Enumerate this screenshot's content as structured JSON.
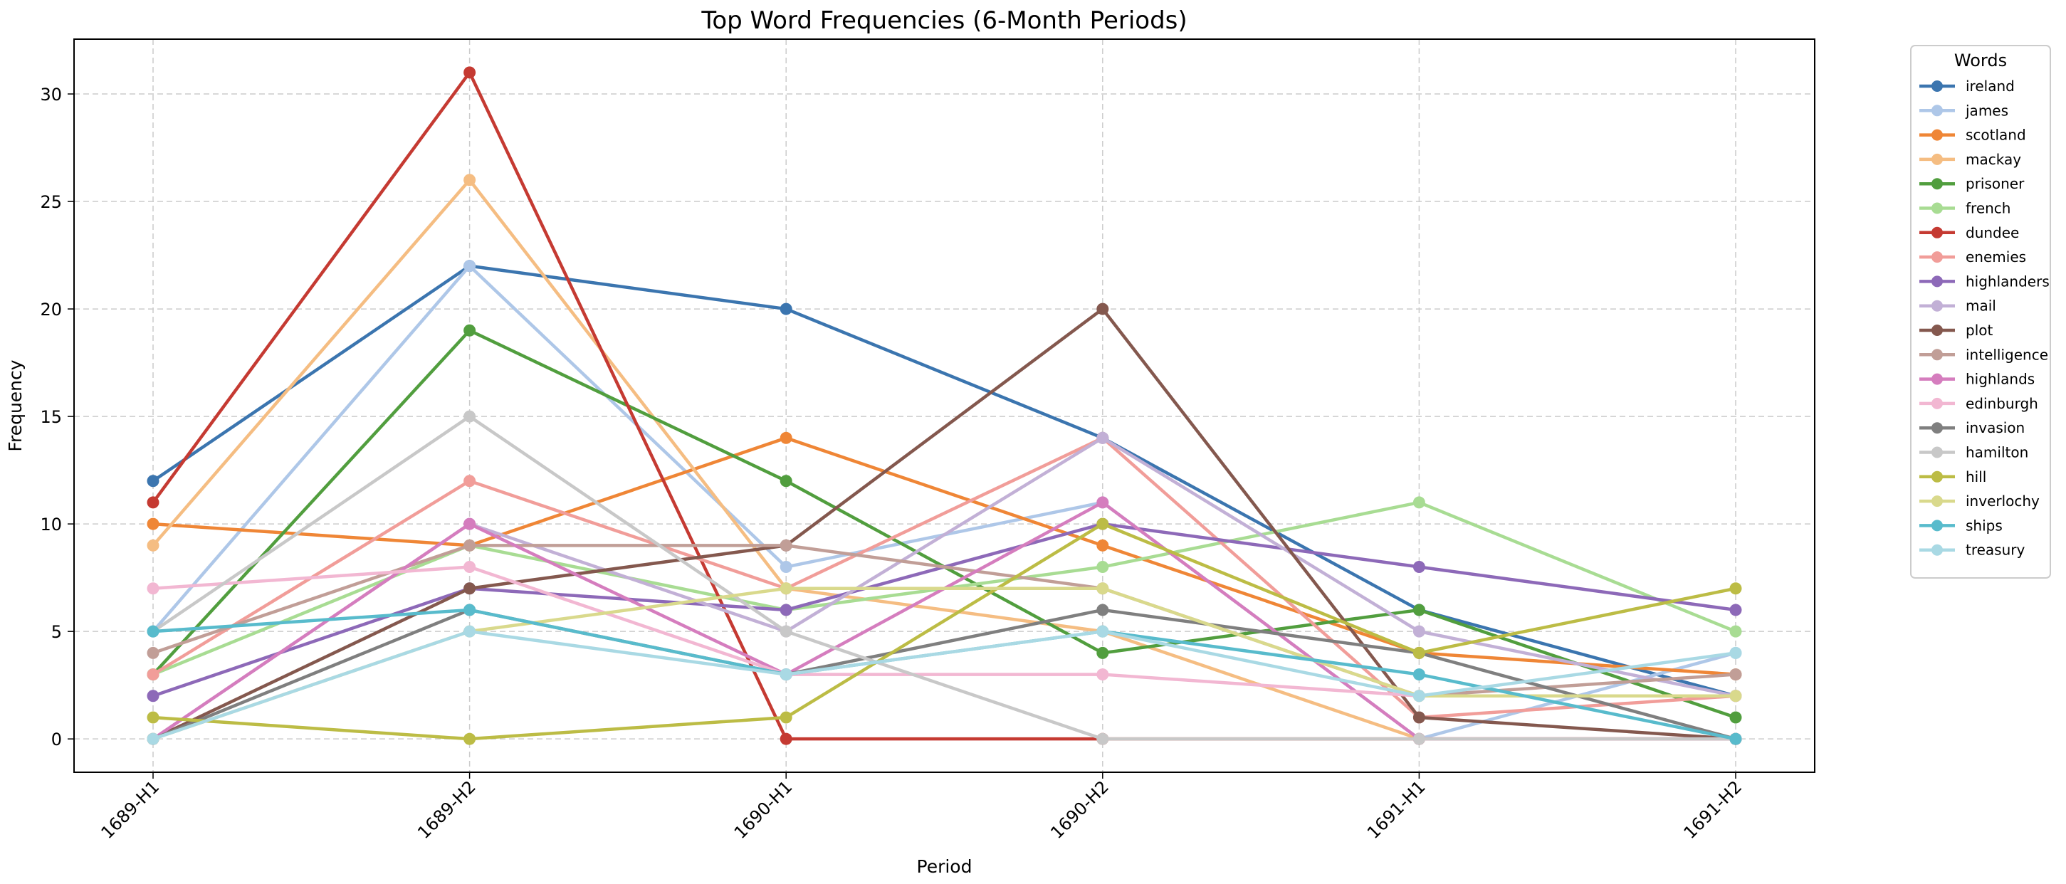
{
  "chart_data": {
    "type": "line",
    "title": "Top Word Frequencies (6-Month Periods)",
    "xlabel": "Period",
    "ylabel": "Frequency",
    "categories": [
      "1689-H1",
      "1689-H2",
      "1690-H1",
      "1690-H2",
      "1691-H1",
      "1691-H2"
    ],
    "ylim": [
      -1.55,
      32.55
    ],
    "yticks": [
      0,
      5,
      10,
      15,
      20,
      25,
      30
    ],
    "grid": true,
    "legend": {
      "title": "Words",
      "placement": "outside-right"
    },
    "series": [
      {
        "name": "ireland",
        "color": "#3b75af",
        "values": [
          12,
          22,
          20,
          14,
          6,
          2
        ]
      },
      {
        "name": "james",
        "color": "#aec7e8",
        "values": [
          5,
          22,
          8,
          11,
          0,
          4
        ]
      },
      {
        "name": "scotland",
        "color": "#ef8636",
        "values": [
          10,
          9,
          14,
          9,
          4,
          3
        ]
      },
      {
        "name": "mackay",
        "color": "#f5bd82",
        "values": [
          9,
          26,
          7,
          5,
          0,
          0
        ]
      },
      {
        "name": "prisoner",
        "color": "#519e3e",
        "values": [
          3,
          19,
          12,
          4,
          6,
          1
        ]
      },
      {
        "name": "french",
        "color": "#a8dc93",
        "values": [
          3,
          9,
          6,
          8,
          11,
          5
        ]
      },
      {
        "name": "dundee",
        "color": "#c53a32",
        "values": [
          11,
          31,
          0,
          0,
          0,
          0
        ]
      },
      {
        "name": "enemies",
        "color": "#f19d99",
        "values": [
          3,
          12,
          7,
          14,
          1,
          2
        ]
      },
      {
        "name": "highlanders",
        "color": "#8d69b8",
        "values": [
          2,
          7,
          6,
          10,
          8,
          6
        ]
      },
      {
        "name": "mail",
        "color": "#c2b0d6",
        "values": [
          0,
          10,
          5,
          14,
          5,
          2
        ]
      },
      {
        "name": "plot",
        "color": "#84584e",
        "values": [
          0,
          7,
          9,
          20,
          1,
          0
        ]
      },
      {
        "name": "intelligence",
        "color": "#c19e97",
        "values": [
          4,
          9,
          9,
          7,
          2,
          3
        ]
      },
      {
        "name": "highlands",
        "color": "#d57dbe",
        "values": [
          0,
          10,
          3,
          11,
          0,
          0
        ]
      },
      {
        "name": "edinburgh",
        "color": "#f2b7d2",
        "values": [
          7,
          8,
          3,
          3,
          2,
          2
        ]
      },
      {
        "name": "invasion",
        "color": "#7f7f7f",
        "values": [
          0,
          6,
          3,
          6,
          4,
          0
        ]
      },
      {
        "name": "hamilton",
        "color": "#c8c8c8",
        "values": [
          5,
          15,
          5,
          0,
          0,
          0
        ]
      },
      {
        "name": "hill",
        "color": "#bcbc45",
        "values": [
          1,
          0,
          1,
          10,
          4,
          7
        ]
      },
      {
        "name": "inverlochy",
        "color": "#d9d98c",
        "values": [
          0,
          5,
          7,
          7,
          2,
          2
        ]
      },
      {
        "name": "ships",
        "color": "#58bbcc",
        "values": [
          5,
          6,
          3,
          5,
          3,
          0
        ]
      },
      {
        "name": "treasury",
        "color": "#a9d9e4",
        "values": [
          0,
          5,
          3,
          5,
          2,
          4
        ]
      }
    ]
  }
}
